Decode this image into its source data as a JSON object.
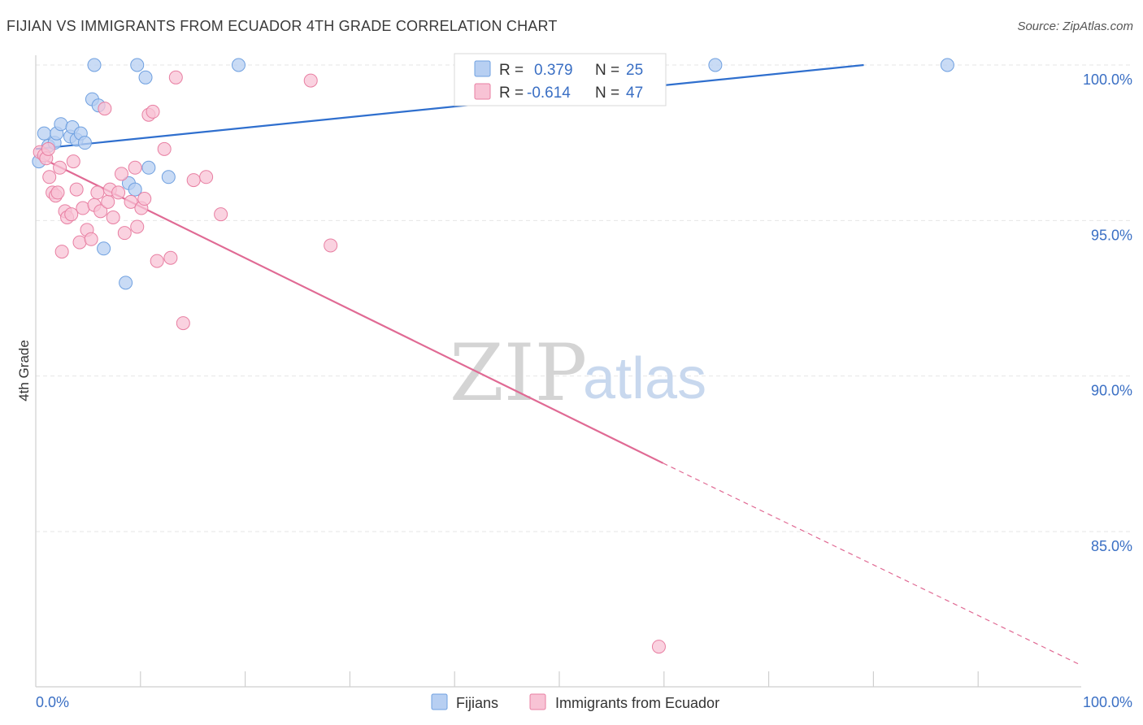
{
  "chart_data": {
    "type": "scatter",
    "title": "FIJIAN VS IMMIGRANTS FROM ECUADOR 4TH GRADE CORRELATION CHART",
    "source": "Source: ZipAtlas.com",
    "xlabel": "",
    "ylabel": "4th Grade",
    "xlim": [
      0,
      100
    ],
    "ylim": [
      80.5,
      100.8
    ],
    "x_tick_labels": [
      "0.0%",
      "100.0%"
    ],
    "y_ticks": [
      {
        "value": 100,
        "label": "100.0%"
      },
      {
        "value": 95,
        "label": "95.0%"
      },
      {
        "value": 90,
        "label": "90.0%"
      },
      {
        "value": 85,
        "label": "85.0%"
      }
    ],
    "watermark": {
      "zip": "ZIP",
      "atlas": "atlas"
    },
    "series": [
      {
        "name": "Fijians",
        "color": "#6fa0e0",
        "fill": "#b7cff2",
        "R_label": "R =",
        "R": "0.379",
        "N_label": "N =",
        "N": "25",
        "trend": {
          "x": [
            0,
            79.2
          ],
          "y": [
            97.3,
            100.0
          ],
          "style": "solid",
          "color": "#2f6fce"
        },
        "points": [
          [
            0.3,
            96.9
          ],
          [
            0.8,
            97.8
          ],
          [
            1.2,
            97.4
          ],
          [
            1.8,
            97.5
          ],
          [
            2.0,
            97.8
          ],
          [
            2.4,
            98.1
          ],
          [
            3.3,
            97.7
          ],
          [
            3.5,
            98.0
          ],
          [
            3.9,
            97.6
          ],
          [
            4.3,
            97.8
          ],
          [
            4.7,
            97.5
          ],
          [
            5.4,
            98.9
          ],
          [
            5.6,
            100.0
          ],
          [
            6.0,
            98.7
          ],
          [
            6.5,
            94.1
          ],
          [
            8.6,
            93.0
          ],
          [
            8.9,
            96.2
          ],
          [
            9.5,
            96.0
          ],
          [
            9.7,
            100.0
          ],
          [
            10.5,
            99.6
          ],
          [
            10.8,
            96.7
          ],
          [
            12.7,
            96.4
          ],
          [
            19.4,
            100.0
          ],
          [
            65.0,
            100.0
          ],
          [
            87.2,
            100.0
          ]
        ]
      },
      {
        "name": "Immigrants from Ecuador",
        "color": "#e87fa2",
        "fill": "#f8c3d5",
        "R_label": "R =",
        "R": "-0.614",
        "N_label": "N =",
        "N": "47",
        "trend": {
          "x": [
            0,
            60
          ],
          "y": [
            97.1,
            87.2
          ],
          "dash_x": [
            60,
            100
          ],
          "dash_y": [
            87.2,
            80.7
          ],
          "style": "solid",
          "color": "#e06a94"
        },
        "points": [
          [
            0.4,
            97.2
          ],
          [
            0.8,
            97.1
          ],
          [
            1.0,
            97.0
          ],
          [
            1.2,
            97.3
          ],
          [
            1.3,
            96.4
          ],
          [
            1.6,
            95.9
          ],
          [
            1.9,
            95.8
          ],
          [
            2.1,
            95.9
          ],
          [
            2.3,
            96.7
          ],
          [
            2.5,
            94.0
          ],
          [
            2.8,
            95.3
          ],
          [
            3.0,
            95.1
          ],
          [
            3.4,
            95.2
          ],
          [
            3.6,
            96.9
          ],
          [
            3.9,
            96.0
          ],
          [
            4.2,
            94.3
          ],
          [
            4.5,
            95.4
          ],
          [
            4.9,
            94.7
          ],
          [
            5.3,
            94.4
          ],
          [
            5.6,
            95.5
          ],
          [
            5.9,
            95.9
          ],
          [
            6.2,
            95.3
          ],
          [
            6.6,
            98.6
          ],
          [
            6.9,
            95.6
          ],
          [
            7.1,
            96.0
          ],
          [
            7.4,
            95.1
          ],
          [
            7.9,
            95.9
          ],
          [
            8.2,
            96.5
          ],
          [
            8.5,
            94.6
          ],
          [
            9.1,
            95.6
          ],
          [
            9.5,
            96.7
          ],
          [
            9.7,
            94.8
          ],
          [
            10.1,
            95.4
          ],
          [
            10.4,
            95.7
          ],
          [
            10.8,
            98.4
          ],
          [
            11.2,
            98.5
          ],
          [
            11.6,
            93.7
          ],
          [
            12.3,
            97.3
          ],
          [
            12.9,
            93.8
          ],
          [
            13.4,
            99.6
          ],
          [
            14.1,
            91.7
          ],
          [
            15.1,
            96.3
          ],
          [
            16.3,
            96.4
          ],
          [
            17.7,
            95.2
          ],
          [
            26.3,
            99.5
          ],
          [
            28.2,
            94.2
          ],
          [
            59.6,
            81.3
          ]
        ]
      }
    ]
  }
}
